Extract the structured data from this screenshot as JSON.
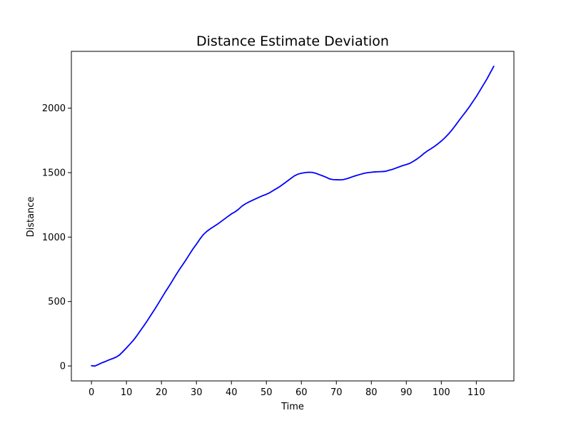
{
  "chart_data": {
    "type": "line",
    "title": "Distance Estimate Deviation",
    "xlabel": "Time",
    "ylabel": "Distance",
    "xlim": [
      -5.75,
      120.75
    ],
    "ylim": [
      -116,
      2441
    ],
    "xticks": [
      0,
      10,
      20,
      30,
      40,
      50,
      60,
      70,
      80,
      90,
      100,
      110
    ],
    "yticks": [
      0,
      500,
      1000,
      1500,
      2000
    ],
    "grid": false,
    "legend": "none",
    "series": [
      {
        "color": "#0000ff",
        "x": [
          0,
          1,
          2,
          3,
          4,
          5,
          6,
          7,
          8,
          9,
          10,
          11,
          12,
          13,
          14,
          15,
          16,
          17,
          18,
          19,
          20,
          21,
          22,
          23,
          24,
          25,
          26,
          27,
          28,
          29,
          30,
          31,
          32,
          33,
          34,
          35,
          36,
          37,
          38,
          39,
          40,
          41,
          42,
          43,
          44,
          45,
          46,
          47,
          48,
          49,
          50,
          51,
          52,
          53,
          54,
          55,
          56,
          57,
          58,
          59,
          60,
          61,
          62,
          63,
          64,
          65,
          66,
          67,
          68,
          69,
          70,
          71,
          72,
          73,
          74,
          75,
          76,
          77,
          78,
          79,
          80,
          81,
          82,
          83,
          84,
          85,
          86,
          87,
          88,
          89,
          90,
          91,
          92,
          93,
          94,
          95,
          96,
          97,
          98,
          99,
          100,
          101,
          102,
          103,
          104,
          105,
          106,
          107,
          108,
          109,
          110,
          111,
          112,
          113,
          114,
          115
        ],
        "y": [
          2,
          0,
          12,
          25,
          35,
          47,
          57,
          68,
          85,
          112,
          140,
          170,
          200,
          236,
          275,
          313,
          353,
          395,
          437,
          480,
          525,
          570,
          612,
          655,
          700,
          743,
          783,
          823,
          866,
          908,
          945,
          985,
          1020,
          1045,
          1065,
          1082,
          1100,
          1120,
          1140,
          1160,
          1180,
          1195,
          1215,
          1240,
          1258,
          1272,
          1285,
          1298,
          1310,
          1322,
          1332,
          1345,
          1362,
          1378,
          1395,
          1415,
          1435,
          1455,
          1475,
          1488,
          1495,
          1500,
          1503,
          1502,
          1496,
          1486,
          1476,
          1465,
          1452,
          1446,
          1445,
          1444,
          1446,
          1453,
          1462,
          1472,
          1480,
          1488,
          1495,
          1500,
          1503,
          1506,
          1507,
          1508,
          1510,
          1518,
          1525,
          1535,
          1545,
          1555,
          1563,
          1572,
          1588,
          1605,
          1625,
          1648,
          1668,
          1685,
          1703,
          1723,
          1745,
          1770,
          1798,
          1830,
          1865,
          1902,
          1938,
          1973,
          2010,
          2050,
          2090,
          2135,
          2180,
          2225,
          2275,
          2325
        ]
      }
    ]
  }
}
